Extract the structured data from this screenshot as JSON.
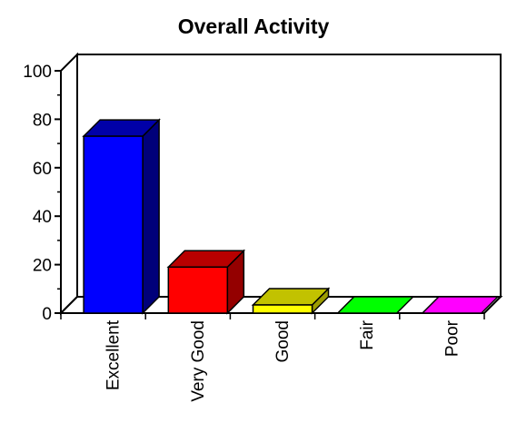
{
  "chart_data": {
    "type": "bar",
    "title": "Overall Activity",
    "xlabel": "",
    "ylabel": "",
    "categories": [
      "Excellent",
      "Very Good",
      "Good",
      "Fair",
      "Poor"
    ],
    "values": [
      73,
      19,
      3,
      0,
      0
    ],
    "ylim": [
      0,
      100
    ],
    "yticks": [
      "0",
      "20",
      "40",
      "60",
      "80",
      "100"
    ],
    "grid": false,
    "three_d": true,
    "colors": {
      "Excellent": {
        "front": "#0000ff",
        "top": "#0000a8",
        "side": "#00007a"
      },
      "Very Good": {
        "front": "#ff0000",
        "top": "#b80000",
        "side": "#940000"
      },
      "Good": {
        "front": "#ffff00",
        "top": "#c2c200",
        "side": "#9c9c00"
      },
      "Fair": {
        "front": "#00ff00",
        "top": "#00c800",
        "side": "#009a00"
      },
      "Poor": {
        "front": "#ff00ff",
        "top": "#b400b4",
        "side": "#8a008a"
      }
    }
  }
}
